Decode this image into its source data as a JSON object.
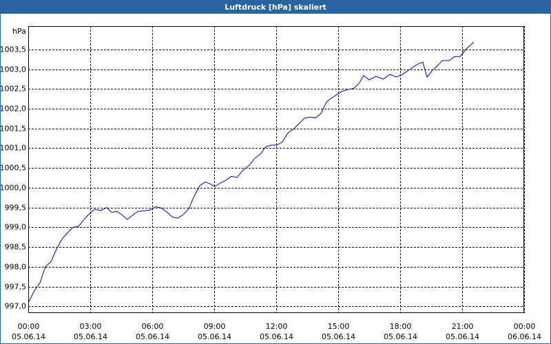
{
  "chart_data": {
    "type": "line",
    "title": "Luftdruck [hPa] skaliert",
    "y_label": "hPa",
    "series": [
      {
        "name": null,
        "color": "#0000c8",
        "x": [
          0,
          0.3,
          0.57,
          0.83,
          1.1,
          1.37,
          1.63,
          1.9,
          2.17,
          2.43,
          2.7,
          2.97,
          3.23,
          3.5,
          3.8,
          4.03,
          4.3,
          4.57,
          4.8,
          5.03,
          5.3,
          5.63,
          5.9,
          6.17,
          6.43,
          6.7,
          6.97,
          7.23,
          7.5,
          7.77,
          8.03,
          8.3,
          8.57,
          8.8,
          9.03,
          9.3,
          9.57,
          9.83,
          10.1,
          10.37,
          10.7,
          10.97,
          11.23,
          11.5,
          11.77,
          12.03,
          12.3,
          12.57,
          12.83,
          13.1,
          13.37,
          13.63,
          13.9,
          14.17,
          14.43,
          14.7,
          14.97,
          15.23,
          15.5,
          15.77,
          16.03,
          16.23,
          16.5,
          16.83,
          17.17,
          17.5,
          17.83,
          18.17,
          18.5,
          18.83,
          19.1,
          19.3,
          19.57,
          19.83,
          20.03,
          20.37,
          20.63,
          20.9,
          21.17,
          21.57
        ],
        "values": [
          997.09,
          997.4,
          997.6,
          998.0,
          998.13,
          998.45,
          998.7,
          998.86,
          999.0,
          999.02,
          999.2,
          999.35,
          999.46,
          999.42,
          999.5,
          999.38,
          999.4,
          999.3,
          999.2,
          999.3,
          999.4,
          999.42,
          999.44,
          999.52,
          999.49,
          999.39,
          999.26,
          999.23,
          999.32,
          999.47,
          999.79,
          1000.05,
          1000.15,
          1000.1,
          1000.03,
          1000.12,
          1000.19,
          1000.29,
          1000.26,
          1000.43,
          1000.57,
          1000.75,
          1000.85,
          1001.04,
          1001.08,
          1001.08,
          1001.16,
          1001.39,
          1001.48,
          1001.62,
          1001.76,
          1001.79,
          1001.77,
          1001.88,
          1002.17,
          1002.28,
          1002.37,
          1002.45,
          1002.49,
          1002.52,
          1002.66,
          1002.84,
          1002.73,
          1002.82,
          1002.75,
          1002.87,
          1002.8,
          1002.89,
          1003.01,
          1003.12,
          1003.18,
          1002.8,
          1002.98,
          1003.1,
          1003.22,
          1003.22,
          1003.32,
          1003.32,
          1003.5,
          1003.69
        ]
      }
    ],
    "xlim": [
      0,
      24
    ],
    "xticks": [
      {
        "value": 0,
        "label": "00:00",
        "date": "05.06.14"
      },
      {
        "value": 3,
        "label": "03:00",
        "date": "05.06.14"
      },
      {
        "value": 6,
        "label": "06:00",
        "date": "05.06.14"
      },
      {
        "value": 9,
        "label": "09:00",
        "date": "05.06.14"
      },
      {
        "value": 12,
        "label": "12:00",
        "date": "05.06.14"
      },
      {
        "value": 15,
        "label": "15:00",
        "date": "05.06.14"
      },
      {
        "value": 18,
        "label": "18:00",
        "date": "05.06.14"
      },
      {
        "value": 21,
        "label": "21:00",
        "date": "05.06.14"
      },
      {
        "value": 24,
        "label": "00:00",
        "date": "06.06.14"
      }
    ],
    "ylim": [
      996.83,
      1004.09
    ],
    "yticks": [
      {
        "value": 997,
        "label": "997,0"
      },
      {
        "value": 997.5,
        "label": "997,5"
      },
      {
        "value": 998,
        "label": "998,0"
      },
      {
        "value": 998.5,
        "label": "998,5"
      },
      {
        "value": 999,
        "label": "999,0"
      },
      {
        "value": 999.5,
        "label": "999,5"
      },
      {
        "value": 1000,
        "label": "1000,0"
      },
      {
        "value": 1000.5,
        "label": "1000,5"
      },
      {
        "value": 1001,
        "label": "1001,0"
      },
      {
        "value": 1001.5,
        "label": "1001,5"
      },
      {
        "value": 1002,
        "label": "1002,0"
      },
      {
        "value": 1002.5,
        "label": "1002,5"
      },
      {
        "value": 1003,
        "label": "1003,0"
      },
      {
        "value": 1003.5,
        "label": "1003,5"
      }
    ],
    "grid": true
  }
}
